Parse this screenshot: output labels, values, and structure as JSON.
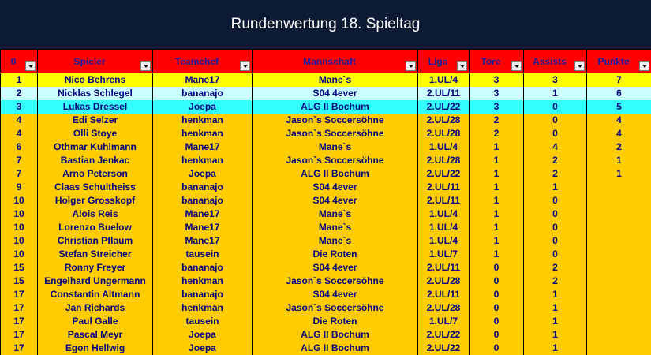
{
  "title": "Rundenwertung 18. Spieltag",
  "columns": [
    "0",
    "Spieler",
    "Teamchef",
    "Mannschaft",
    "Liga",
    "Tore",
    "Assists",
    "Punkte"
  ],
  "rows": [
    {
      "rank": "1",
      "player": "Nico Behrens",
      "teamchef": "Mane17",
      "team": "Mane`s",
      "league": "1.UL/4",
      "goals": "3",
      "assists": "3",
      "points": "7",
      "style": "yellow"
    },
    {
      "rank": "2",
      "player": "Nicklas Schlegel",
      "teamchef": "bananajo",
      "team": "S04 4ever",
      "league": "2.UL/11",
      "goals": "3",
      "assists": "1",
      "points": "6",
      "style": "light"
    },
    {
      "rank": "3",
      "player": "Lukas Dressel",
      "teamchef": "Joepa",
      "team": "ALG II Bochum",
      "league": "2.UL/22",
      "goals": "3",
      "assists": "0",
      "points": "5",
      "style": "cyan"
    },
    {
      "rank": "4",
      "player": "Edi Selzer",
      "teamchef": "henkman",
      "team": "Jason`s Soccersöhne",
      "league": "2.UL/28",
      "goals": "2",
      "assists": "0",
      "points": "4",
      "style": "orange"
    },
    {
      "rank": "4",
      "player": "Olli Stoye",
      "teamchef": "henkman",
      "team": "Jason`s Soccersöhne",
      "league": "2.UL/28",
      "goals": "2",
      "assists": "0",
      "points": "4",
      "style": "orange"
    },
    {
      "rank": "6",
      "player": "Othmar Kuhlmann",
      "teamchef": "Mane17",
      "team": "Mane`s",
      "league": "1.UL/4",
      "goals": "1",
      "assists": "4",
      "points": "2",
      "style": "orange"
    },
    {
      "rank": "7",
      "player": "Bastian Jenkac",
      "teamchef": "henkman",
      "team": "Jason`s Soccersöhne",
      "league": "2.UL/28",
      "goals": "1",
      "assists": "2",
      "points": "1",
      "style": "orange"
    },
    {
      "rank": "7",
      "player": "Arno Peterson",
      "teamchef": "Joepa",
      "team": "ALG II Bochum",
      "league": "2.UL/22",
      "goals": "1",
      "assists": "2",
      "points": "1",
      "style": "orange"
    },
    {
      "rank": "9",
      "player": "Claas Schultheiss",
      "teamchef": "bananajo",
      "team": "S04 4ever",
      "league": "2.UL/11",
      "goals": "1",
      "assists": "1",
      "points": "",
      "style": "orange"
    },
    {
      "rank": "10",
      "player": "Holger Grosskopf",
      "teamchef": "bananajo",
      "team": "S04 4ever",
      "league": "2.UL/11",
      "goals": "1",
      "assists": "0",
      "points": "",
      "style": "orange"
    },
    {
      "rank": "10",
      "player": "Alois Reis",
      "teamchef": "Mane17",
      "team": "Mane`s",
      "league": "1.UL/4",
      "goals": "1",
      "assists": "0",
      "points": "",
      "style": "orange"
    },
    {
      "rank": "10",
      "player": "Lorenzo Buelow",
      "teamchef": "Mane17",
      "team": "Mane`s",
      "league": "1.UL/4",
      "goals": "1",
      "assists": "0",
      "points": "",
      "style": "orange"
    },
    {
      "rank": "10",
      "player": "Christian Pflaum",
      "teamchef": "Mane17",
      "team": "Mane`s",
      "league": "1.UL/4",
      "goals": "1",
      "assists": "0",
      "points": "",
      "style": "orange"
    },
    {
      "rank": "10",
      "player": "Stefan Streicher",
      "teamchef": "tausein",
      "team": "Die Roten",
      "league": "1.UL/7",
      "goals": "1",
      "assists": "0",
      "points": "",
      "style": "orange"
    },
    {
      "rank": "15",
      "player": "Ronny Freyer",
      "teamchef": "bananajo",
      "team": "S04 4ever",
      "league": "2.UL/11",
      "goals": "0",
      "assists": "2",
      "points": "",
      "style": "orange"
    },
    {
      "rank": "15",
      "player": "Engelhard Ungermann",
      "teamchef": "henkman",
      "team": "Jason`s Soccersöhne",
      "league": "2.UL/28",
      "goals": "0",
      "assists": "2",
      "points": "",
      "style": "orange"
    },
    {
      "rank": "17",
      "player": "Constantin Altmann",
      "teamchef": "bananajo",
      "team": "S04 4ever",
      "league": "2.UL/11",
      "goals": "0",
      "assists": "1",
      "points": "",
      "style": "orange"
    },
    {
      "rank": "17",
      "player": "Jan Richards",
      "teamchef": "henkman",
      "team": "Jason`s Soccersöhne",
      "league": "2.UL/28",
      "goals": "0",
      "assists": "1",
      "points": "",
      "style": "orange"
    },
    {
      "rank": "17",
      "player": "Paul Galle",
      "teamchef": "tausein",
      "team": "Die Roten",
      "league": "1.UL/7",
      "goals": "0",
      "assists": "1",
      "points": "",
      "style": "orange"
    },
    {
      "rank": "17",
      "player": "Pascal Meyr",
      "teamchef": "Joepa",
      "team": "ALG II Bochum",
      "league": "2.UL/22",
      "goals": "0",
      "assists": "1",
      "points": "",
      "style": "orange"
    },
    {
      "rank": "17",
      "player": "Egon Hellwig",
      "teamchef": "Joepa",
      "team": "ALG II Bochum",
      "league": "2.UL/22",
      "goals": "0",
      "assists": "1",
      "points": "",
      "style": "orange"
    }
  ],
  "colors": {
    "header_bg": "#ff0000",
    "title_bg": "#0d1a33",
    "text": "#000080",
    "row_gold": "#ffcc00",
    "row_first": "#ffff00",
    "row_second": "#ccffff",
    "row_third": "#33ffff"
  },
  "icons": {
    "filter": "dropdown-arrow-icon"
  }
}
